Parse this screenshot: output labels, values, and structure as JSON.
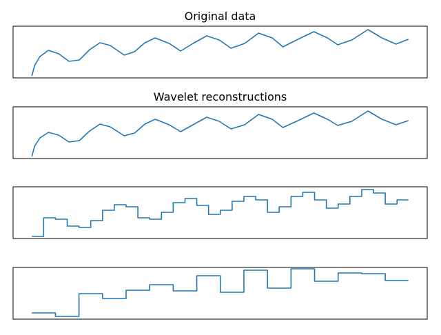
{
  "chart_data": [
    {
      "type": "line",
      "title": "Original data",
      "color": "#1f77b4",
      "xlim": [
        -51,
        1074
      ],
      "ylim": [
        0,
        75
      ],
      "x": [
        0,
        7.5,
        22,
        45,
        73,
        101,
        129,
        157,
        185,
        213,
        251,
        279,
        307,
        335,
        373,
        404,
        438,
        475,
        509,
        541,
        578,
        616,
        653,
        682,
        719,
        766,
        803,
        831,
        869,
        913,
        951,
        989,
        1023
      ],
      "values": [
        3,
        18,
        31,
        40,
        35,
        24,
        26,
        41,
        51,
        47,
        33,
        38,
        51,
        58,
        50,
        39,
        50,
        61,
        55,
        43,
        50,
        65,
        58,
        45,
        55,
        67,
        58,
        48,
        55,
        70,
        58,
        49,
        56
      ]
    },
    {
      "type": "line",
      "title": "Wavelet reconstructions",
      "color": "#1f77b4",
      "xlim": [
        -51,
        1074
      ],
      "ylim": [
        0,
        75
      ],
      "x": [
        0,
        7.5,
        22,
        45,
        73,
        101,
        129,
        157,
        185,
        213,
        251,
        279,
        307,
        335,
        373,
        404,
        438,
        475,
        509,
        541,
        578,
        616,
        653,
        682,
        719,
        766,
        803,
        831,
        869,
        913,
        951,
        989,
        1023
      ],
      "values": [
        3,
        18,
        30,
        38,
        34,
        24,
        26,
        40,
        50,
        46,
        33,
        37,
        50,
        57,
        49,
        39,
        49,
        60,
        54,
        43,
        49,
        64,
        57,
        45,
        54,
        66,
        57,
        48,
        54,
        69,
        57,
        49,
        55
      ]
    },
    {
      "type": "line",
      "drawstyle": "steps-post",
      "color": "#1f77b4",
      "xlim": [
        -51,
        1074
      ],
      "ylim": [
        0,
        75
      ],
      "x": [
        0,
        32,
        64,
        96,
        128,
        160,
        192,
        224,
        256,
        288,
        320,
        352,
        384,
        416,
        448,
        480,
        512,
        544,
        576,
        608,
        640,
        672,
        704,
        736,
        768,
        800,
        832,
        864,
        896,
        928,
        960,
        992,
        1023
      ],
      "values": [
        3,
        30,
        28,
        18,
        16,
        26,
        41,
        49,
        46,
        30,
        28,
        38,
        52,
        58,
        48,
        35,
        41,
        54,
        61,
        56,
        38,
        46,
        61,
        67,
        56,
        44,
        50,
        61,
        71,
        66,
        50,
        56,
        56
      ]
    },
    {
      "type": "line",
      "drawstyle": "steps-post",
      "color": "#1f77b4",
      "xlim": [
        -51,
        1074
      ],
      "ylim": [
        0,
        75
      ],
      "x": [
        0,
        64,
        128,
        192,
        256,
        320,
        384,
        448,
        512,
        576,
        640,
        704,
        768,
        832,
        896,
        960,
        1023
      ],
      "values": [
        9,
        4,
        37,
        30,
        42,
        50,
        41,
        63,
        39,
        71,
        45,
        73,
        55,
        67,
        66,
        56,
        56
      ]
    }
  ]
}
